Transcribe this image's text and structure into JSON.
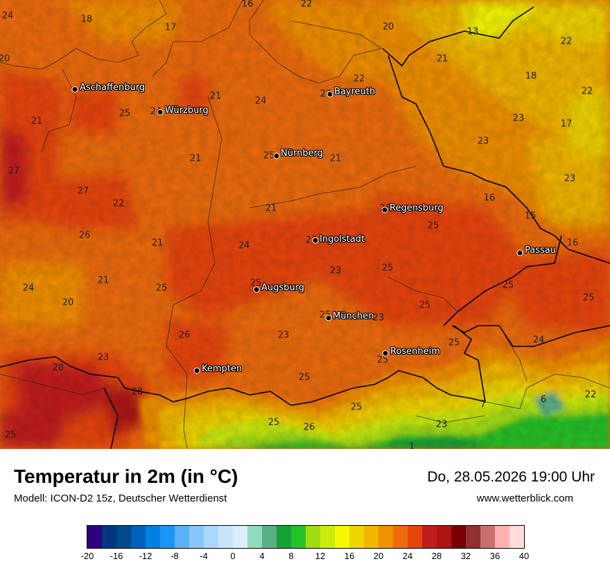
{
  "title": "Temperatur in 2m (in °C)",
  "model": "Modell: ICON-D2 15z, Deutscher Wetterdienst",
  "datetime": "Do, 28.05.2026 19:00 Uhr",
  "website": "www.wetterblick.com",
  "cities": [
    "Aschaffenburg",
    "Würzburg",
    "Bayreuth",
    "Nürnberg",
    "Regensburg",
    "Ingolstadt",
    "Passau",
    "Augsburg",
    "München",
    "Rosenheim",
    "Kempten"
  ],
  "temperature_labels": [
    "24",
    "18",
    "17",
    "16",
    "22",
    "20",
    "13",
    "22",
    "20",
    "21",
    "18",
    "22",
    "21",
    "24",
    "27",
    "25",
    "24",
    "22",
    "23",
    "17",
    "21",
    "21",
    "25",
    "21",
    "23",
    "27",
    "27",
    "22",
    "21",
    "16",
    "23",
    "25",
    "15",
    "26",
    "21",
    "24",
    "27",
    "16",
    "25",
    "23",
    "25",
    "21",
    "24",
    "25",
    "25",
    "20",
    "25",
    "23",
    "25",
    "25",
    "25",
    "24",
    "28",
    "23",
    "26",
    "23",
    "25",
    "25",
    "7",
    "6",
    "22",
    "28",
    "25",
    "26",
    "23",
    "1",
    "25",
    "25",
    "25"
  ],
  "colorbar": {
    "ticks": [
      "-20",
      "-16",
      "-12",
      "-8",
      "-4",
      "0",
      "4",
      "8",
      "12",
      "16",
      "20",
      "24",
      "28",
      "32",
      "36",
      "40"
    ],
    "colors": [
      "#2e0080",
      "#003580",
      "#004a8c",
      "#0060c0",
      "#0080e0",
      "#1a94f5",
      "#5cb0f7",
      "#88c6fa",
      "#aad6fb",
      "#c8e4fb",
      "#dceefc",
      "#8fdcbd",
      "#5aae85",
      "#15a235",
      "#27c227",
      "#a0dc14",
      "#cdeb0b",
      "#f3f800",
      "#f0d400",
      "#f2b600",
      "#f19000",
      "#ee6c0e",
      "#e8450c",
      "#c21c1c",
      "#ae1515",
      "#780000",
      "#903030",
      "#c87070",
      "#ffb0b0",
      "#ffdcdc"
    ]
  }
}
